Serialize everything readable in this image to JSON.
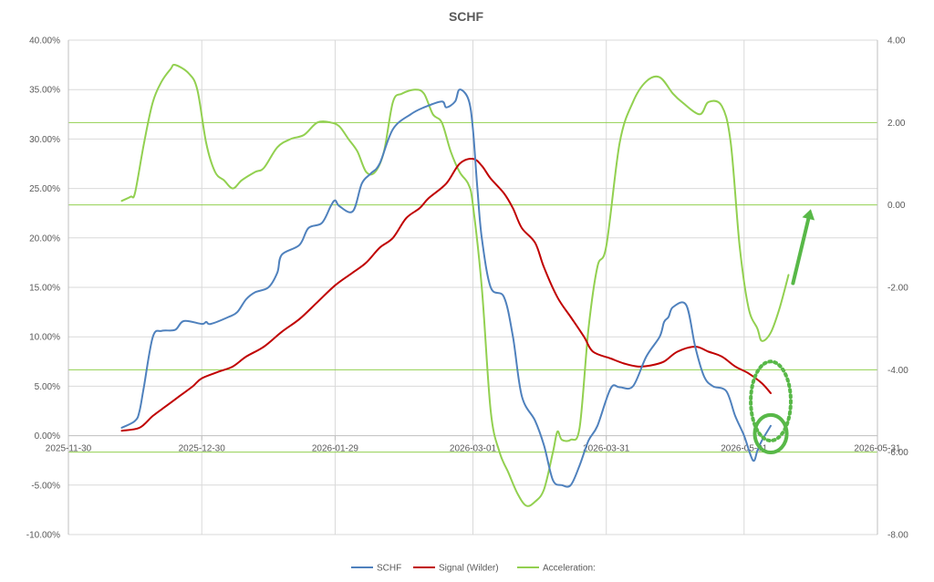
{
  "chart_data": {
    "type": "line",
    "title": "SCHF",
    "grid": true,
    "legend_position": "bottom",
    "x_axis": {
      "min": "2025-11-30",
      "max": "2026-05-31",
      "tick_labels": [
        "2025-11-30",
        "2025-12-30",
        "2026-01-29",
        "2026-03-01",
        "2026-03-31",
        "2026-05-01",
        "2026-05-31"
      ]
    },
    "y_left": {
      "min": -10,
      "max": 40,
      "step": 5,
      "tick_labels": [
        "-10.00%",
        "-5.00%",
        "0.00%",
        "5.00%",
        "10.00%",
        "15.00%",
        "20.00%",
        "25.00%",
        "30.00%",
        "35.00%",
        "40.00%"
      ]
    },
    "y_right": {
      "min": -8,
      "max": 4,
      "step": 2,
      "tick_labels": [
        "-8.00",
        "-6.00",
        "-4.00",
        "-2.00",
        "0.00",
        "2.00",
        "4.00"
      ]
    },
    "reference_lines_right_axis": [
      2.0,
      0.0,
      -4.0,
      -6.0
    ],
    "series": [
      {
        "name": "SCHF",
        "axis": "left",
        "color": "#4f81bd",
        "points": [
          [
            "2025-12-12",
            0.8
          ],
          [
            "2025-12-15",
            1.5
          ],
          [
            "2025-12-16",
            2.5
          ],
          [
            "2025-12-17",
            5.0
          ],
          [
            "2025-12-19",
            10.0
          ],
          [
            "2025-12-21",
            10.6
          ],
          [
            "2025-12-24",
            10.7
          ],
          [
            "2025-12-26",
            11.6
          ],
          [
            "2025-12-30",
            11.3
          ],
          [
            "2025-12-31",
            11.5
          ],
          [
            "2026-01-01",
            11.3
          ],
          [
            "2026-01-05",
            12.0
          ],
          [
            "2026-01-07",
            12.5
          ],
          [
            "2026-01-09",
            13.8
          ],
          [
            "2026-01-11",
            14.5
          ],
          [
            "2026-01-14",
            15.0
          ],
          [
            "2026-01-16",
            16.5
          ],
          [
            "2026-01-17",
            18.3
          ],
          [
            "2026-01-21",
            19.3
          ],
          [
            "2026-01-23",
            21.0
          ],
          [
            "2026-01-26",
            21.5
          ],
          [
            "2026-01-28",
            23.2
          ],
          [
            "2026-01-29",
            23.8
          ],
          [
            "2026-01-30",
            23.2
          ],
          [
            "2026-02-02",
            22.7
          ],
          [
            "2026-02-04",
            25.5
          ],
          [
            "2026-02-06",
            26.5
          ],
          [
            "2026-02-08",
            27.5
          ],
          [
            "2026-02-11",
            31.0
          ],
          [
            "2026-02-15",
            32.5
          ],
          [
            "2026-02-18",
            33.2
          ],
          [
            "2026-02-22",
            33.8
          ],
          [
            "2026-02-23",
            33.2
          ],
          [
            "2026-02-25",
            33.8
          ],
          [
            "2026-02-26",
            35.0
          ],
          [
            "2026-02-28",
            34.0
          ],
          [
            "2026-03-01",
            31.0
          ],
          [
            "2026-03-02",
            25.0
          ],
          [
            "2026-03-03",
            20.0
          ],
          [
            "2026-03-05",
            15.0
          ],
          [
            "2026-03-08",
            14.0
          ],
          [
            "2026-03-10",
            10.0
          ],
          [
            "2026-03-12",
            4.0
          ],
          [
            "2026-03-15",
            1.5
          ],
          [
            "2026-03-17",
            -1.0
          ],
          [
            "2026-03-19",
            -4.5
          ],
          [
            "2026-03-21",
            -5.0
          ],
          [
            "2026-03-23",
            -5.0
          ],
          [
            "2026-03-25",
            -3.0
          ],
          [
            "2026-03-27",
            -0.5
          ],
          [
            "2026-03-29",
            1.0
          ],
          [
            "2026-04-01",
            4.8
          ],
          [
            "2026-04-03",
            4.9
          ],
          [
            "2026-04-06",
            5.0
          ],
          [
            "2026-04-09",
            8.0
          ],
          [
            "2026-04-12",
            10.0
          ],
          [
            "2026-04-13",
            11.5
          ],
          [
            "2026-04-14",
            12.0
          ],
          [
            "2026-04-15",
            13.0
          ],
          [
            "2026-04-18",
            13.2
          ],
          [
            "2026-04-20",
            9.0
          ],
          [
            "2026-04-22",
            6.0
          ],
          [
            "2026-04-24",
            5.0
          ],
          [
            "2026-04-27",
            4.5
          ],
          [
            "2026-04-29",
            2.0
          ],
          [
            "2026-05-01",
            0.0
          ],
          [
            "2026-05-03",
            -2.5
          ],
          [
            "2026-05-04",
            -1.5
          ],
          [
            "2026-05-05",
            -0.5
          ],
          [
            "2026-05-07",
            1.0
          ]
        ]
      },
      {
        "name": "Signal (Wilder)",
        "axis": "left",
        "color": "#c00000",
        "points": [
          [
            "2025-12-12",
            0.5
          ],
          [
            "2025-12-16",
            0.8
          ],
          [
            "2025-12-19",
            2.0
          ],
          [
            "2025-12-22",
            3.0
          ],
          [
            "2025-12-25",
            4.0
          ],
          [
            "2025-12-28",
            5.0
          ],
          [
            "2025-12-30",
            5.8
          ],
          [
            "2026-01-03",
            6.5
          ],
          [
            "2026-01-06",
            7.0
          ],
          [
            "2026-01-09",
            8.0
          ],
          [
            "2026-01-13",
            9.0
          ],
          [
            "2026-01-17",
            10.5
          ],
          [
            "2026-01-21",
            11.8
          ],
          [
            "2026-01-25",
            13.5
          ],
          [
            "2026-01-29",
            15.2
          ],
          [
            "2026-02-02",
            16.5
          ],
          [
            "2026-02-05",
            17.5
          ],
          [
            "2026-02-08",
            19.0
          ],
          [
            "2026-02-11",
            20.0
          ],
          [
            "2026-02-14",
            22.0
          ],
          [
            "2026-02-17",
            23.0
          ],
          [
            "2026-02-19",
            24.0
          ],
          [
            "2026-02-23",
            25.5
          ],
          [
            "2026-02-26",
            27.5
          ],
          [
            "2026-03-01",
            28.0
          ],
          [
            "2026-03-03",
            27.3
          ],
          [
            "2026-03-05",
            26.0
          ],
          [
            "2026-03-08",
            24.5
          ],
          [
            "2026-03-10",
            23.0
          ],
          [
            "2026-03-12",
            21.0
          ],
          [
            "2026-03-15",
            19.5
          ],
          [
            "2026-03-17",
            17.0
          ],
          [
            "2026-03-20",
            14.0
          ],
          [
            "2026-03-23",
            12.0
          ],
          [
            "2026-03-26",
            10.0
          ],
          [
            "2026-03-28",
            8.5
          ],
          [
            "2026-04-01",
            7.8
          ],
          [
            "2026-04-04",
            7.3
          ],
          [
            "2026-04-07",
            7.0
          ],
          [
            "2026-04-10",
            7.1
          ],
          [
            "2026-04-13",
            7.5
          ],
          [
            "2026-04-16",
            8.5
          ],
          [
            "2026-04-20",
            9.0
          ],
          [
            "2026-04-23",
            8.5
          ],
          [
            "2026-04-26",
            8.0
          ],
          [
            "2026-04-29",
            7.0
          ],
          [
            "2026-05-02",
            6.3
          ],
          [
            "2026-05-05",
            5.3
          ],
          [
            "2026-05-07",
            4.3
          ]
        ]
      },
      {
        "name": "Acceleration:",
        "axis": "right",
        "color": "#92d050",
        "points": [
          [
            "2025-12-12",
            0.1
          ],
          [
            "2025-12-14",
            0.2
          ],
          [
            "2025-12-15",
            0.3
          ],
          [
            "2025-12-17",
            1.5
          ],
          [
            "2025-12-19",
            2.5
          ],
          [
            "2025-12-21",
            3.0
          ],
          [
            "2025-12-23",
            3.3
          ],
          [
            "2025-12-24",
            3.4
          ],
          [
            "2025-12-27",
            3.2
          ],
          [
            "2025-12-29",
            2.8
          ],
          [
            "2025-12-31",
            1.5
          ],
          [
            "2026-01-02",
            0.8
          ],
          [
            "2026-01-04",
            0.6
          ],
          [
            "2026-01-06",
            0.4
          ],
          [
            "2026-01-08",
            0.6
          ],
          [
            "2026-01-11",
            0.8
          ],
          [
            "2026-01-13",
            0.9
          ],
          [
            "2026-01-16",
            1.4
          ],
          [
            "2026-01-19",
            1.6
          ],
          [
            "2026-01-22",
            1.7
          ],
          [
            "2026-01-25",
            2.0
          ],
          [
            "2026-01-28",
            2.0
          ],
          [
            "2026-01-30",
            1.9
          ],
          [
            "2026-02-01",
            1.6
          ],
          [
            "2026-02-03",
            1.3
          ],
          [
            "2026-02-05",
            0.8
          ],
          [
            "2026-02-07",
            0.8
          ],
          [
            "2026-02-09",
            1.3
          ],
          [
            "2026-02-11",
            2.5
          ],
          [
            "2026-02-13",
            2.7
          ],
          [
            "2026-02-16",
            2.8
          ],
          [
            "2026-02-18",
            2.7
          ],
          [
            "2026-02-20",
            2.2
          ],
          [
            "2026-02-22",
            2.0
          ],
          [
            "2026-02-24",
            1.3
          ],
          [
            "2026-02-26",
            0.8
          ],
          [
            "2026-02-28",
            0.5
          ],
          [
            "2026-03-01",
            0.0
          ],
          [
            "2026-03-03",
            -2.0
          ],
          [
            "2026-03-05",
            -5.0
          ],
          [
            "2026-03-07",
            -6.0
          ],
          [
            "2026-03-09",
            -6.5
          ],
          [
            "2026-03-11",
            -7.0
          ],
          [
            "2026-03-13",
            -7.3
          ],
          [
            "2026-03-15",
            -7.2
          ],
          [
            "2026-03-17",
            -6.9
          ],
          [
            "2026-03-19",
            -6.0
          ],
          [
            "2026-03-20",
            -5.5
          ],
          [
            "2026-03-21",
            -5.7
          ],
          [
            "2026-03-23",
            -5.7
          ],
          [
            "2026-03-25",
            -5.4
          ],
          [
            "2026-03-27",
            -3.0
          ],
          [
            "2026-03-29",
            -1.5
          ],
          [
            "2026-03-31",
            -1.0
          ],
          [
            "2026-04-03",
            1.5
          ],
          [
            "2026-04-06",
            2.5
          ],
          [
            "2026-04-09",
            3.0
          ],
          [
            "2026-04-12",
            3.1
          ],
          [
            "2026-04-15",
            2.7
          ],
          [
            "2026-04-17",
            2.5
          ],
          [
            "2026-04-21",
            2.2
          ],
          [
            "2026-04-23",
            2.5
          ],
          [
            "2026-04-26",
            2.4
          ],
          [
            "2026-04-28",
            1.5
          ],
          [
            "2026-04-30",
            -1.0
          ],
          [
            "2026-05-02",
            -2.5
          ],
          [
            "2026-05-04",
            -3.0
          ],
          [
            "2026-05-05",
            -3.3
          ],
          [
            "2026-05-07",
            -3.1
          ],
          [
            "2026-05-09",
            -2.5
          ],
          [
            "2026-05-11",
            -1.7
          ]
        ]
      }
    ],
    "annotations": [
      {
        "type": "arrow",
        "color": "#58b848",
        "from": [
          "2026-05-12",
          -1.9
        ],
        "to": [
          "2026-05-16",
          -0.1
        ]
      },
      {
        "type": "dotted-ellipse",
        "color": "#58b848",
        "center": [
          "2026-05-07",
          3.5
        ],
        "radius_days": 4.5,
        "radius_pct": 4.0
      },
      {
        "type": "circle",
        "color": "#58b848",
        "center": [
          "2026-05-07",
          0.2
        ],
        "radius_days": 3.6,
        "radius_pct": 1.9
      }
    ]
  }
}
